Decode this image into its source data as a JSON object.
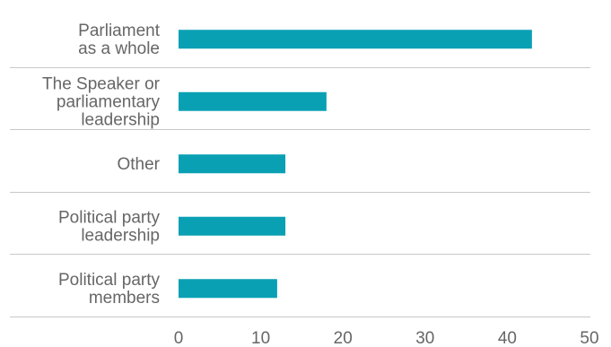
{
  "chart_data": {
    "type": "bar",
    "orientation": "horizontal",
    "title": "",
    "xlabel": "",
    "ylabel": "",
    "categories": [
      [
        "Parliament",
        "as a whole"
      ],
      [
        "The Speaker or",
        "parliamentary",
        "leadership"
      ],
      [
        "Other"
      ],
      [
        "Political party",
        "leadership"
      ],
      [
        "Political party",
        "members"
      ]
    ],
    "series": [
      {
        "values": [
          43,
          18,
          13,
          13,
          12
        ]
      }
    ],
    "xlim": [
      0,
      50
    ],
    "xticks": [
      0,
      10,
      20,
      30,
      40,
      50
    ],
    "grid": false,
    "legend": "none",
    "colors": {
      "bar": "#0aa0b4",
      "separator": "#c8c8c8",
      "text": "#666666"
    }
  }
}
